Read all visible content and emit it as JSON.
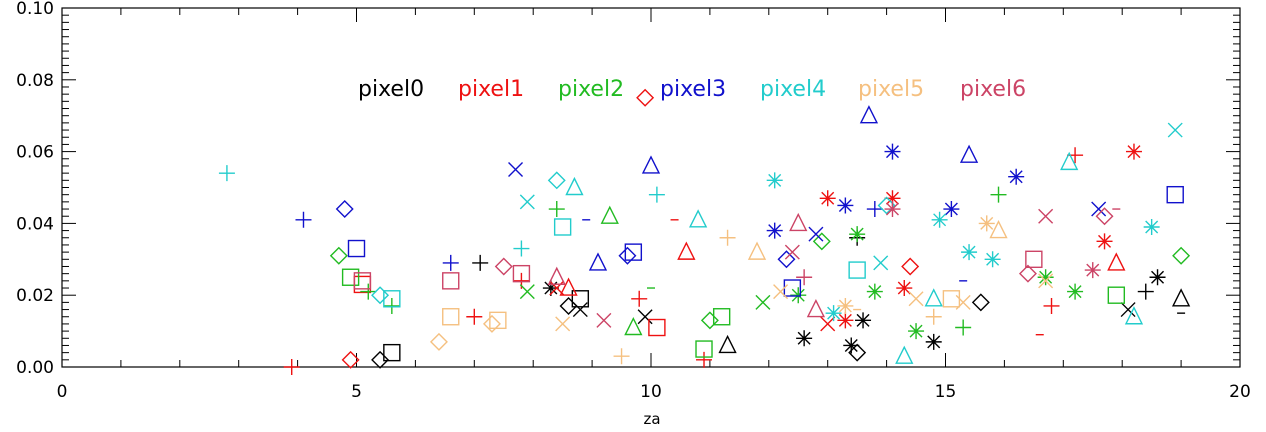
{
  "chart_data": {
    "type": "scatter",
    "title": "",
    "xlabel": "za",
    "ylabel": "",
    "xlim": [
      0,
      20
    ],
    "ylim": [
      0,
      0.1
    ],
    "xticks": [
      "0",
      "5",
      "10",
      "15",
      "20"
    ],
    "yticks": [
      "0.00",
      "0.02",
      "0.04",
      "0.06",
      "0.08",
      "0.10"
    ],
    "legend_placement": "top-center",
    "series": [
      {
        "name": "pixel0",
        "color": "#000000",
        "points": [
          [
            5.4,
            0.002,
            "diamond"
          ],
          [
            5.6,
            0.004,
            "square"
          ],
          [
            7.1,
            0.029,
            "plus"
          ],
          [
            8.3,
            0.022,
            "star"
          ],
          [
            8.6,
            0.017,
            "diamond"
          ],
          [
            8.8,
            0.016,
            "x"
          ],
          [
            8.8,
            0.019,
            "square"
          ],
          [
            9.9,
            0.014,
            "x"
          ],
          [
            11.3,
            0.006,
            "triangle"
          ],
          [
            12.6,
            0.008,
            "star"
          ],
          [
            13.4,
            0.006,
            "star"
          ],
          [
            13.5,
            0.004,
            "diamond"
          ],
          [
            13.5,
            0.036,
            "plus"
          ],
          [
            13.6,
            0.013,
            "star"
          ],
          [
            14.8,
            0.007,
            "star"
          ],
          [
            15.6,
            0.018,
            "diamond"
          ],
          [
            18.1,
            0.016,
            "x"
          ],
          [
            18.4,
            0.021,
            "plus"
          ],
          [
            18.6,
            0.025,
            "star"
          ],
          [
            19.0,
            0.019,
            "triangle"
          ],
          [
            19.0,
            0.015,
            "minus"
          ]
        ]
      },
      {
        "name": "pixel1",
        "color": "#ee1111",
        "points": [
          [
            3.9,
            0.0,
            "plus"
          ],
          [
            4.9,
            0.002,
            "diamond"
          ],
          [
            5.1,
            0.023,
            "square"
          ],
          [
            7.0,
            0.014,
            "plus"
          ],
          [
            7.8,
            0.024,
            "plus"
          ],
          [
            8.4,
            0.022,
            "x"
          ],
          [
            8.6,
            0.022,
            "triangle"
          ],
          [
            9.8,
            0.019,
            "plus"
          ],
          [
            9.9,
            0.075,
            "diamond"
          ],
          [
            10.1,
            0.011,
            "square"
          ],
          [
            10.4,
            0.041,
            "minus"
          ],
          [
            10.6,
            0.032,
            "triangle"
          ],
          [
            10.9,
            0.002,
            "plus"
          ],
          [
            13.0,
            0.047,
            "star"
          ],
          [
            13.0,
            0.012,
            "x"
          ],
          [
            13.3,
            0.013,
            "star"
          ],
          [
            14.1,
            0.047,
            "star"
          ],
          [
            14.3,
            0.022,
            "star"
          ],
          [
            14.4,
            0.028,
            "diamond"
          ],
          [
            16.6,
            0.009,
            "minus"
          ],
          [
            16.8,
            0.017,
            "plus"
          ],
          [
            17.2,
            0.059,
            "plus"
          ],
          [
            17.7,
            0.035,
            "star"
          ],
          [
            17.9,
            0.029,
            "triangle"
          ],
          [
            18.2,
            0.06,
            "star"
          ]
        ]
      },
      {
        "name": "pixel2",
        "color": "#22bb22",
        "points": [
          [
            4.7,
            0.031,
            "diamond"
          ],
          [
            4.9,
            0.025,
            "square"
          ],
          [
            5.2,
            0.021,
            "plus"
          ],
          [
            5.6,
            0.017,
            "plus"
          ],
          [
            7.9,
            0.021,
            "x"
          ],
          [
            8.4,
            0.044,
            "plus"
          ],
          [
            9.3,
            0.042,
            "triangle"
          ],
          [
            9.7,
            0.011,
            "triangle"
          ],
          [
            10.0,
            0.022,
            "minus"
          ],
          [
            10.9,
            0.005,
            "square"
          ],
          [
            11.0,
            0.013,
            "diamond"
          ],
          [
            11.2,
            0.014,
            "square"
          ],
          [
            11.9,
            0.018,
            "x"
          ],
          [
            12.5,
            0.02,
            "star"
          ],
          [
            12.9,
            0.035,
            "diamond"
          ],
          [
            13.5,
            0.037,
            "star"
          ],
          [
            13.8,
            0.021,
            "star"
          ],
          [
            14.5,
            0.01,
            "star"
          ],
          [
            15.3,
            0.011,
            "plus"
          ],
          [
            15.9,
            0.048,
            "plus"
          ],
          [
            16.7,
            0.025,
            "star"
          ],
          [
            17.2,
            0.021,
            "star"
          ],
          [
            17.9,
            0.02,
            "square"
          ],
          [
            19.0,
            0.031,
            "diamond"
          ]
        ]
      },
      {
        "name": "pixel3",
        "color": "#1111cc",
        "points": [
          [
            4.1,
            0.041,
            "plus"
          ],
          [
            4.8,
            0.044,
            "diamond"
          ],
          [
            5.0,
            0.033,
            "square"
          ],
          [
            6.6,
            0.029,
            "plus"
          ],
          [
            7.7,
            0.055,
            "x"
          ],
          [
            8.9,
            0.041,
            "minus"
          ],
          [
            9.1,
            0.029,
            "triangle"
          ],
          [
            9.6,
            0.031,
            "diamond"
          ],
          [
            9.7,
            0.032,
            "square"
          ],
          [
            10.0,
            0.056,
            "triangle"
          ],
          [
            12.1,
            0.038,
            "star"
          ],
          [
            12.3,
            0.03,
            "diamond"
          ],
          [
            12.4,
            0.022,
            "square"
          ],
          [
            12.8,
            0.037,
            "x"
          ],
          [
            13.3,
            0.045,
            "star"
          ],
          [
            13.7,
            0.07,
            "triangle"
          ],
          [
            13.8,
            0.044,
            "plus"
          ],
          [
            14.1,
            0.06,
            "star"
          ],
          [
            15.1,
            0.044,
            "star"
          ],
          [
            15.4,
            0.059,
            "triangle"
          ],
          [
            15.3,
            0.024,
            "minus"
          ],
          [
            16.2,
            0.053,
            "star"
          ],
          [
            17.6,
            0.044,
            "x"
          ],
          [
            18.9,
            0.048,
            "square"
          ]
        ]
      },
      {
        "name": "pixel4",
        "color": "#22cccc",
        "points": [
          [
            2.8,
            0.054,
            "plus"
          ],
          [
            5.4,
            0.02,
            "diamond"
          ],
          [
            5.6,
            0.019,
            "square"
          ],
          [
            7.9,
            0.046,
            "x"
          ],
          [
            7.8,
            0.033,
            "plus"
          ],
          [
            8.4,
            0.052,
            "diamond"
          ],
          [
            8.5,
            0.039,
            "square"
          ],
          [
            8.7,
            0.05,
            "triangle"
          ],
          [
            10.1,
            0.048,
            "plus"
          ],
          [
            10.8,
            0.041,
            "triangle"
          ],
          [
            12.1,
            0.052,
            "star"
          ],
          [
            13.1,
            0.015,
            "star"
          ],
          [
            13.5,
            0.027,
            "square"
          ],
          [
            13.9,
            0.029,
            "x"
          ],
          [
            14.0,
            0.045,
            "diamond"
          ],
          [
            14.3,
            0.003,
            "triangle"
          ],
          [
            14.8,
            0.019,
            "triangle"
          ],
          [
            14.9,
            0.041,
            "star"
          ],
          [
            15.4,
            0.032,
            "star"
          ],
          [
            15.8,
            0.03,
            "star"
          ],
          [
            17.1,
            0.057,
            "triangle"
          ],
          [
            18.2,
            0.014,
            "triangle"
          ],
          [
            18.5,
            0.039,
            "star"
          ],
          [
            18.9,
            0.066,
            "x"
          ]
        ]
      },
      {
        "name": "pixel5",
        "color": "#f5c080",
        "points": [
          [
            6.4,
            0.007,
            "diamond"
          ],
          [
            6.6,
            0.014,
            "square"
          ],
          [
            7.3,
            0.012,
            "diamond"
          ],
          [
            7.4,
            0.013,
            "square"
          ],
          [
            8.5,
            0.012,
            "x"
          ],
          [
            9.5,
            0.003,
            "plus"
          ],
          [
            11.3,
            0.036,
            "plus"
          ],
          [
            11.8,
            0.032,
            "triangle"
          ],
          [
            12.2,
            0.021,
            "x"
          ],
          [
            13.3,
            0.017,
            "star"
          ],
          [
            13.5,
            0.016,
            "minus"
          ],
          [
            14.5,
            0.019,
            "x"
          ],
          [
            14.8,
            0.014,
            "plus"
          ],
          [
            15.1,
            0.019,
            "square"
          ],
          [
            15.3,
            0.018,
            "x"
          ],
          [
            15.7,
            0.04,
            "star"
          ],
          [
            15.9,
            0.038,
            "triangle"
          ],
          [
            16.7,
            0.024,
            "x"
          ]
        ]
      },
      {
        "name": "pixel6",
        "color": "#cc4466",
        "points": [
          [
            5.1,
            0.024,
            "square"
          ],
          [
            6.6,
            0.024,
            "square"
          ],
          [
            7.5,
            0.028,
            "diamond"
          ],
          [
            7.8,
            0.026,
            "square"
          ],
          [
            8.4,
            0.025,
            "triangle"
          ],
          [
            9.2,
            0.013,
            "x"
          ],
          [
            12.4,
            0.032,
            "x"
          ],
          [
            12.5,
            0.04,
            "triangle"
          ],
          [
            12.6,
            0.025,
            "plus"
          ],
          [
            12.8,
            0.016,
            "triangle"
          ],
          [
            14.1,
            0.044,
            "star"
          ],
          [
            16.4,
            0.026,
            "diamond"
          ],
          [
            16.5,
            0.03,
            "square"
          ],
          [
            16.7,
            0.042,
            "x"
          ],
          [
            17.7,
            0.042,
            "diamond"
          ],
          [
            17.5,
            0.027,
            "star"
          ],
          [
            17.9,
            0.044,
            "minus"
          ]
        ]
      }
    ]
  }
}
